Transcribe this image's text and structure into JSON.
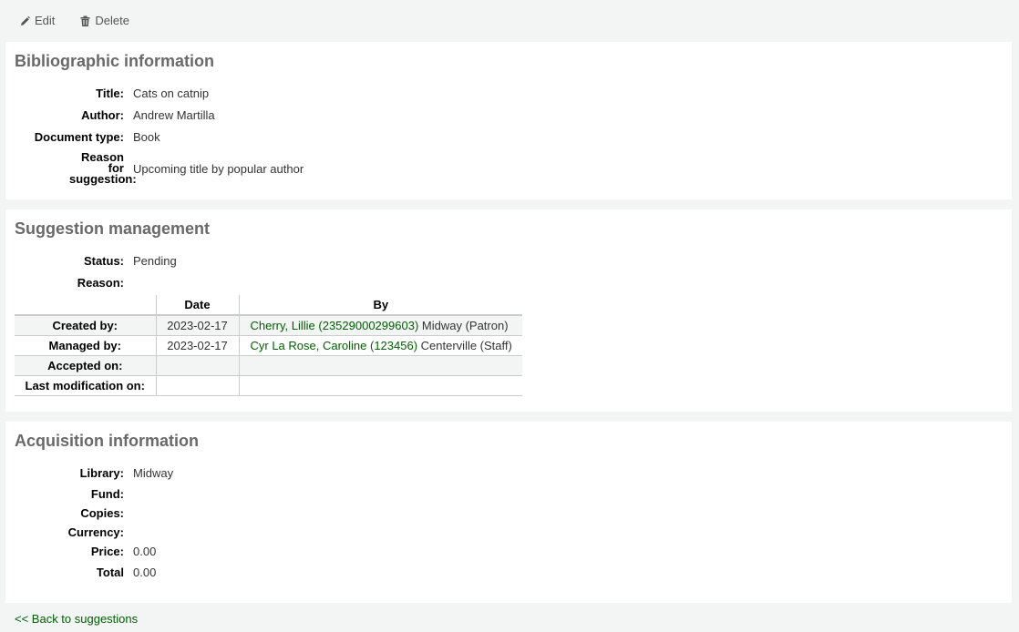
{
  "toolbar": {
    "edit": "Edit",
    "delete": "Delete",
    "edit_icon": "pencil-icon",
    "delete_icon": "trash-icon"
  },
  "biblio": {
    "heading": "Bibliographic information",
    "fields": [
      {
        "label": "Title:",
        "value": "Cats on catnip"
      },
      {
        "label": "Author:",
        "value": "Andrew Martilla"
      },
      {
        "label": "Document type:",
        "value": "Book"
      },
      {
        "label": "Reason for suggestion:",
        "value": "Upcoming title by popular author"
      }
    ]
  },
  "management": {
    "heading": "Suggestion management",
    "status_label": "Status:",
    "status": "Pending",
    "reason_label": "Reason:",
    "reason": "",
    "table": {
      "headers": [
        "",
        "Date",
        "By"
      ],
      "rows": [
        {
          "label": "Created by:",
          "date": "2023-02-17",
          "by_link": "Cherry, Lillie (23529000299603)",
          "by_rest": " Midway (Patron)"
        },
        {
          "label": "Managed by:",
          "date": "2023-02-17",
          "by_link": "Cyr La Rose, Caroline (123456)",
          "by_rest": " Centerville (Staff)"
        },
        {
          "label": "Accepted on:",
          "date": "",
          "by_link": "",
          "by_rest": ""
        },
        {
          "label": "Last modification on:",
          "date": "",
          "by_link": "",
          "by_rest": ""
        }
      ]
    }
  },
  "acquisition": {
    "heading": "Acquisition information",
    "fields": [
      {
        "label": "Library:",
        "value": "Midway"
      },
      {
        "label": "Fund:",
        "value": ""
      },
      {
        "label": "Copies:",
        "value": ""
      },
      {
        "label": "Currency:",
        "value": ""
      },
      {
        "label": "Price:",
        "value": "0.00"
      },
      {
        "label": "Total",
        "value": "0.00"
      }
    ]
  },
  "back_link": "<< Back to suggestions"
}
